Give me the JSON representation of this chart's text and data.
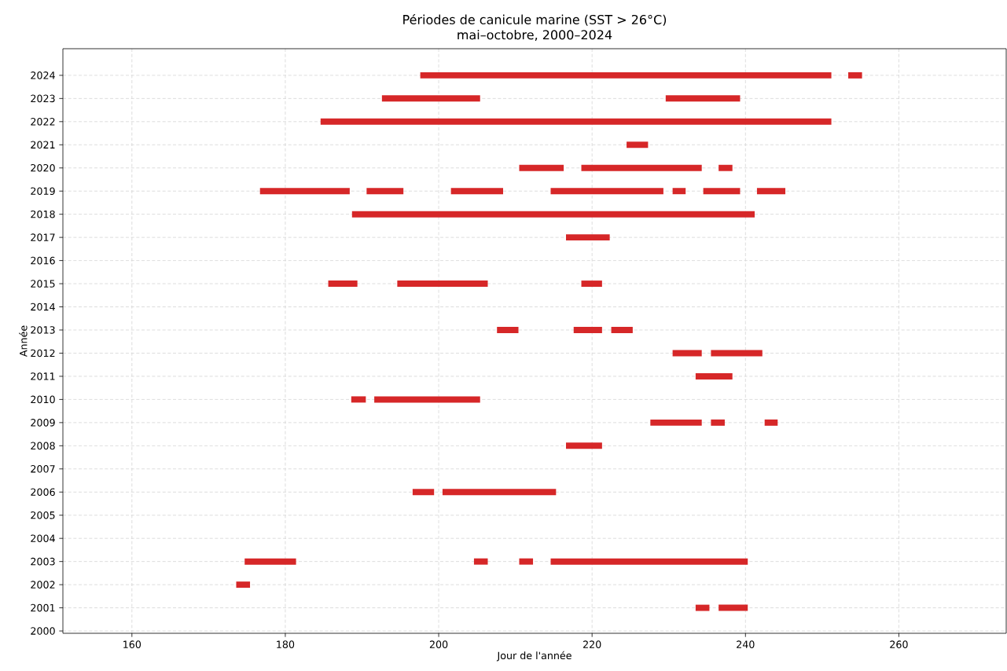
{
  "chart_data": {
    "type": "bar",
    "orientation": "horizontal",
    "title": "Périodes de canicule marine (SST > 26°C)",
    "subtitle": "mai–octobre, 2000–2024",
    "xlabel": "Jour de l'année",
    "ylabel": "Année",
    "categories": [
      "2024",
      "2023",
      "2022",
      "2021",
      "2020",
      "2019",
      "2018",
      "2017",
      "2016",
      "2015",
      "2014",
      "2013",
      "2012",
      "2011",
      "2010",
      "2009",
      "2008",
      "2007",
      "2006",
      "2005",
      "2004",
      "2003",
      "2002",
      "2001",
      "2000"
    ],
    "xlim": [
      151,
      274
    ],
    "xticks": [
      160,
      180,
      200,
      220,
      240,
      260
    ],
    "grid": true,
    "series": [
      {
        "color": "#d62728",
        "base": [
          197.6,
          192.6,
          184.6,
          224.5,
          210.5,
          176.7,
          188.7,
          216.6,
          null,
          185.6,
          null,
          207.6,
          230.5,
          233.5,
          188.6,
          227.6,
          216.6,
          null,
          196.6,
          null,
          null,
          174.7,
          173.6,
          233.5,
          null
        ],
        "values": [
          53.6,
          12.8,
          66.6,
          2.8,
          5.8,
          11.7,
          52.5,
          5.7,
          null,
          3.8,
          null,
          2.8,
          3.8,
          4.8,
          1.9,
          6.7,
          4.7,
          null,
          2.8,
          null,
          null,
          6.7,
          1.8,
          1.8,
          null
        ]
      },
      {
        "color": "#d62728",
        "base": [
          253.4,
          229.6,
          null,
          null,
          218.6,
          190.6,
          null,
          null,
          null,
          194.6,
          null,
          217.6,
          235.5,
          null,
          191.6,
          235.5,
          null,
          null,
          200.5,
          null,
          null,
          204.6,
          null,
          236.5,
          null
        ],
        "values": [
          1.8,
          9.7,
          null,
          null,
          15.7,
          4.8,
          null,
          null,
          null,
          11.8,
          null,
          3.7,
          6.7,
          null,
          13.8,
          1.8,
          null,
          null,
          14.8,
          null,
          null,
          1.8,
          null,
          3.8,
          null
        ]
      },
      {
        "color": "#d62728",
        "base": [
          null,
          null,
          null,
          null,
          236.5,
          201.6,
          null,
          null,
          null,
          218.6,
          null,
          222.5,
          null,
          null,
          null,
          242.5,
          null,
          null,
          null,
          null,
          null,
          210.5,
          null,
          null,
          null
        ],
        "values": [
          null,
          null,
          null,
          null,
          1.8,
          6.8,
          null,
          null,
          null,
          2.7,
          null,
          2.8,
          null,
          null,
          null,
          1.7,
          null,
          null,
          null,
          null,
          null,
          1.8,
          null,
          null,
          null
        ]
      },
      {
        "color": "#d62728",
        "base": [
          null,
          null,
          null,
          null,
          null,
          214.6,
          null,
          null,
          null,
          null,
          null,
          null,
          null,
          null,
          null,
          null,
          null,
          null,
          null,
          null,
          null,
          214.6,
          null,
          null,
          null
        ],
        "values": [
          null,
          null,
          null,
          null,
          null,
          14.7,
          null,
          null,
          null,
          null,
          null,
          null,
          null,
          null,
          null,
          null,
          null,
          null,
          null,
          null,
          null,
          25.7,
          null,
          null,
          null
        ]
      },
      {
        "color": "#d62728",
        "base": [
          null,
          null,
          null,
          null,
          null,
          230.5,
          null,
          null,
          null,
          null,
          null,
          null,
          null,
          null,
          null,
          null,
          null,
          null,
          null,
          null,
          null,
          null,
          null,
          null,
          null
        ],
        "values": [
          null,
          null,
          null,
          null,
          null,
          1.7,
          null,
          null,
          null,
          null,
          null,
          null,
          null,
          null,
          null,
          null,
          null,
          null,
          null,
          null,
          null,
          null,
          null,
          null,
          null
        ]
      },
      {
        "color": "#d62728",
        "base": [
          null,
          null,
          null,
          null,
          null,
          234.5,
          null,
          null,
          null,
          null,
          null,
          null,
          null,
          null,
          null,
          null,
          null,
          null,
          null,
          null,
          null,
          null,
          null,
          null,
          null
        ],
        "values": [
          null,
          null,
          null,
          null,
          null,
          4.8,
          null,
          null,
          null,
          null,
          null,
          null,
          null,
          null,
          null,
          null,
          null,
          null,
          null,
          null,
          null,
          null,
          null,
          null,
          null
        ]
      },
      {
        "color": "#d62728",
        "base": [
          null,
          null,
          null,
          null,
          null,
          241.5,
          null,
          null,
          null,
          null,
          null,
          null,
          null,
          null,
          null,
          null,
          null,
          null,
          null,
          null,
          null,
          null,
          null,
          null,
          null
        ],
        "values": [
          null,
          null,
          null,
          null,
          null,
          3.7,
          null,
          null,
          null,
          null,
          null,
          null,
          null,
          null,
          null,
          null,
          null,
          null,
          null,
          null,
          null,
          null,
          null,
          null,
          null
        ]
      }
    ]
  }
}
